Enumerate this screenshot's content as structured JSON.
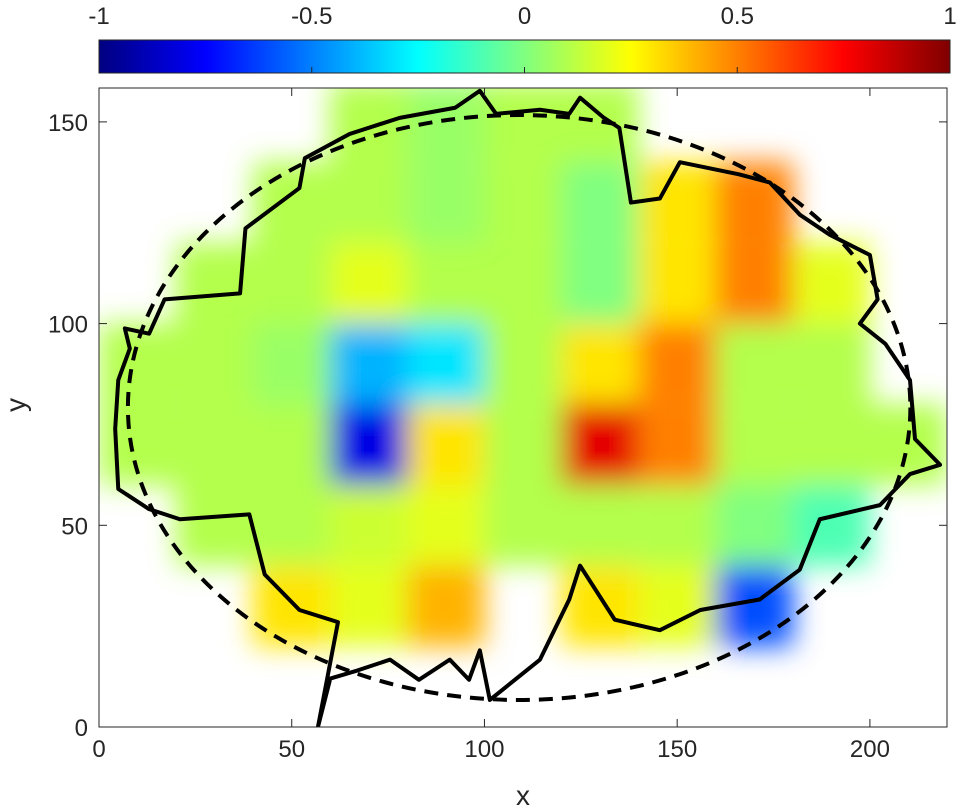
{
  "chart_data": {
    "type": "heatmap",
    "xlabel": "x",
    "ylabel": "y",
    "xlim": [
      0,
      220
    ],
    "ylim": [
      0,
      158.4
    ],
    "xticks": [
      0,
      50,
      100,
      150,
      200
    ],
    "yticks": [
      0,
      50,
      100,
      150
    ],
    "colormap": "jet",
    "clim": [
      -1,
      1
    ],
    "cticks": [
      -1,
      -0.5,
      0,
      0.5,
      1
    ],
    "x": [
      10,
      30,
      50,
      70,
      90,
      110,
      130,
      150,
      170,
      190,
      210
    ],
    "y": [
      150,
      130,
      110,
      90,
      70,
      50,
      30
    ],
    "z": [
      [
        null,
        null,
        null,
        0.1,
        0.05,
        0.1,
        0.1,
        null,
        null,
        null,
        null
      ],
      [
        null,
        null,
        0.1,
        0.1,
        0.05,
        0.1,
        0,
        0.3,
        0.5,
        null,
        null
      ],
      [
        null,
        0.1,
        0.1,
        0.2,
        0.1,
        0.1,
        0,
        0.3,
        0.5,
        0.2,
        null
      ],
      [
        0.1,
        0.1,
        0.05,
        -0.4,
        -0.3,
        0.1,
        0.3,
        0.5,
        0.1,
        0.1,
        null
      ],
      [
        0.1,
        0.1,
        0.1,
        -0.8,
        0.3,
        0.1,
        0.8,
        0.5,
        0.1,
        0.1,
        0.1
      ],
      [
        null,
        0.1,
        0.1,
        0.15,
        0.2,
        0.1,
        0.1,
        0.1,
        0,
        -0.1,
        null
      ],
      [
        null,
        null,
        0.3,
        0.2,
        0.4,
        null,
        0.3,
        0.2,
        -0.6,
        null,
        null
      ]
    ],
    "boundary": {
      "x": [
        56.8,
        60,
        67,
        75.5,
        83,
        91,
        96,
        98.8,
        101.4,
        114.4,
        122,
        124.8,
        133.8,
        145.5,
        156,
        171.4,
        181.8,
        187,
        202.6,
        210.4,
        218.2,
        211.7,
        210.4,
        204,
        197.4,
        202,
        200,
        189.6,
        181.8,
        174,
        166,
        150.7,
        145.5,
        138,
        135,
        131,
        124.8,
        122,
        114.4,
        103,
        98.8,
        92.4,
        78,
        65,
        53.4,
        52,
        38,
        36.6,
        17,
        13,
        6.7,
        8,
        5,
        4.2,
        5,
        13,
        21,
        39,
        43,
        52,
        62,
        56.8
      ],
      "y": [
        0,
        12,
        14,
        16.7,
        11.7,
        16.7,
        11.7,
        19,
        6.7,
        16.7,
        31.6,
        40,
        26.6,
        24,
        29,
        31.6,
        39,
        51.5,
        55,
        62.7,
        65,
        71.4,
        86,
        95,
        100,
        106,
        117,
        122,
        127,
        135,
        137,
        140,
        131,
        130,
        148.5,
        151,
        156,
        152,
        153,
        152,
        157.7,
        153.5,
        151,
        147,
        141,
        133.6,
        123.6,
        107.5,
        106,
        97.5,
        98.8,
        93.8,
        86,
        73.9,
        59,
        54,
        51.5,
        52.7,
        37.8,
        29,
        26,
        0
      ]
    },
    "ellipse": {
      "cx": 109,
      "cy": 79.2,
      "rx": 101.5,
      "ry": 72.5
    }
  }
}
